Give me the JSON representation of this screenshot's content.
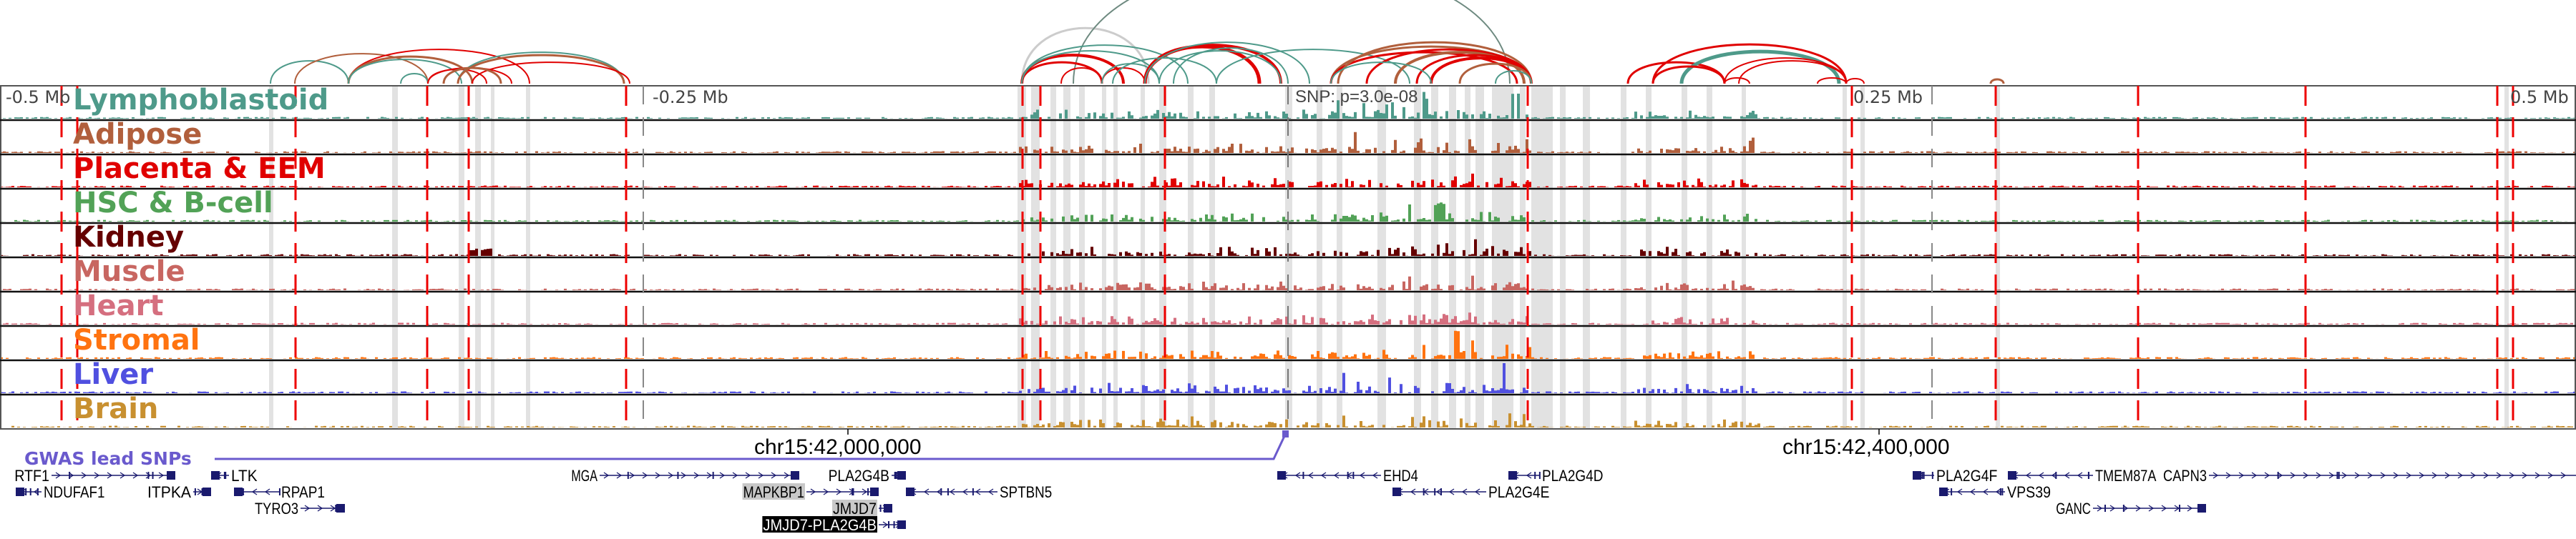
{
  "browser": {
    "region_chromosome": "chr15",
    "axis_labels": [
      "-0.5 Mb",
      "-0.25 Mb",
      "0.25 Mb",
      "0.5 Mb"
    ],
    "coordinate_labels": [
      "chr15:42,000,000",
      "chr15:42,400,000"
    ],
    "snp_label": "SNP: p=3.0e-08",
    "gwas_track_label": "GWAS lead SNPs",
    "gwas_color": "#6a5acd"
  },
  "tracks": [
    {
      "label": "Lymphoblastoid",
      "color": "#4e9a8a"
    },
    {
      "label": "Adipose",
      "color": "#b15f3c"
    },
    {
      "label": "Placenta & EEM",
      "color": "#e00000"
    },
    {
      "label": "HSC & B-cell",
      "color": "#52a257"
    },
    {
      "label": "Kidney",
      "color": "#650000"
    },
    {
      "label": "Muscle",
      "color": "#c86661"
    },
    {
      "label": "Heart",
      "color": "#d56f7f"
    },
    {
      "label": "Stromal",
      "color": "#ff7310"
    },
    {
      "label": "Liver",
      "color": "#5050e0"
    },
    {
      "label": "Brain",
      "color": "#c89030"
    }
  ],
  "genes": [
    {
      "name": "RTF1",
      "strand": "+",
      "row": 0,
      "highlight": "none"
    },
    {
      "name": "NDUFAF1",
      "strand": "-",
      "row": 1,
      "highlight": "none"
    },
    {
      "name": "ITPKA",
      "strand": "+",
      "row": 1,
      "highlight": "none"
    },
    {
      "name": "LTK",
      "strand": "-",
      "row": 0,
      "highlight": "none"
    },
    {
      "name": "RPAP1",
      "strand": "-",
      "row": 1,
      "highlight": "none"
    },
    {
      "name": "TYRO3",
      "strand": "+",
      "row": 2,
      "highlight": "none"
    },
    {
      "name": "MGA",
      "strand": "+",
      "row": 0,
      "highlight": "none"
    },
    {
      "name": "MAPKBP1",
      "strand": "+",
      "row": 1,
      "highlight": "gray"
    },
    {
      "name": "PLA2G4B",
      "strand": "+",
      "row": 0,
      "highlight": "none"
    },
    {
      "name": "JMJD7",
      "strand": "+",
      "row": 2,
      "highlight": "gray"
    },
    {
      "name": "JMJD7-PLA2G4B",
      "strand": "+",
      "row": 3,
      "highlight": "black"
    },
    {
      "name": "SPTBN5",
      "strand": "-",
      "row": 1,
      "highlight": "none"
    },
    {
      "name": "EHD4",
      "strand": "-",
      "row": 0,
      "highlight": "none"
    },
    {
      "name": "PLA2G4E",
      "strand": "-",
      "row": 1,
      "highlight": "none"
    },
    {
      "name": "PLA2G4D",
      "strand": "-",
      "row": 0,
      "highlight": "none"
    },
    {
      "name": "PLA2G4F",
      "strand": "-",
      "row": 0,
      "highlight": "none"
    },
    {
      "name": "VPS39",
      "strand": "-",
      "row": 1,
      "highlight": "none"
    },
    {
      "name": "TMEM87A",
      "strand": "-",
      "row": 0,
      "highlight": "none"
    },
    {
      "name": "GANC",
      "strand": "+",
      "row": 2,
      "highlight": "none"
    },
    {
      "name": "CAPN3",
      "strand": "+",
      "row": 0,
      "highlight": "none"
    }
  ],
  "colors": {
    "boundary": "#ee0000",
    "highlight_band": "#e2e2e2",
    "gene": "#1a1a6e",
    "arc_gray": "#cccccc",
    "arc_dark": "#6e8a80"
  }
}
